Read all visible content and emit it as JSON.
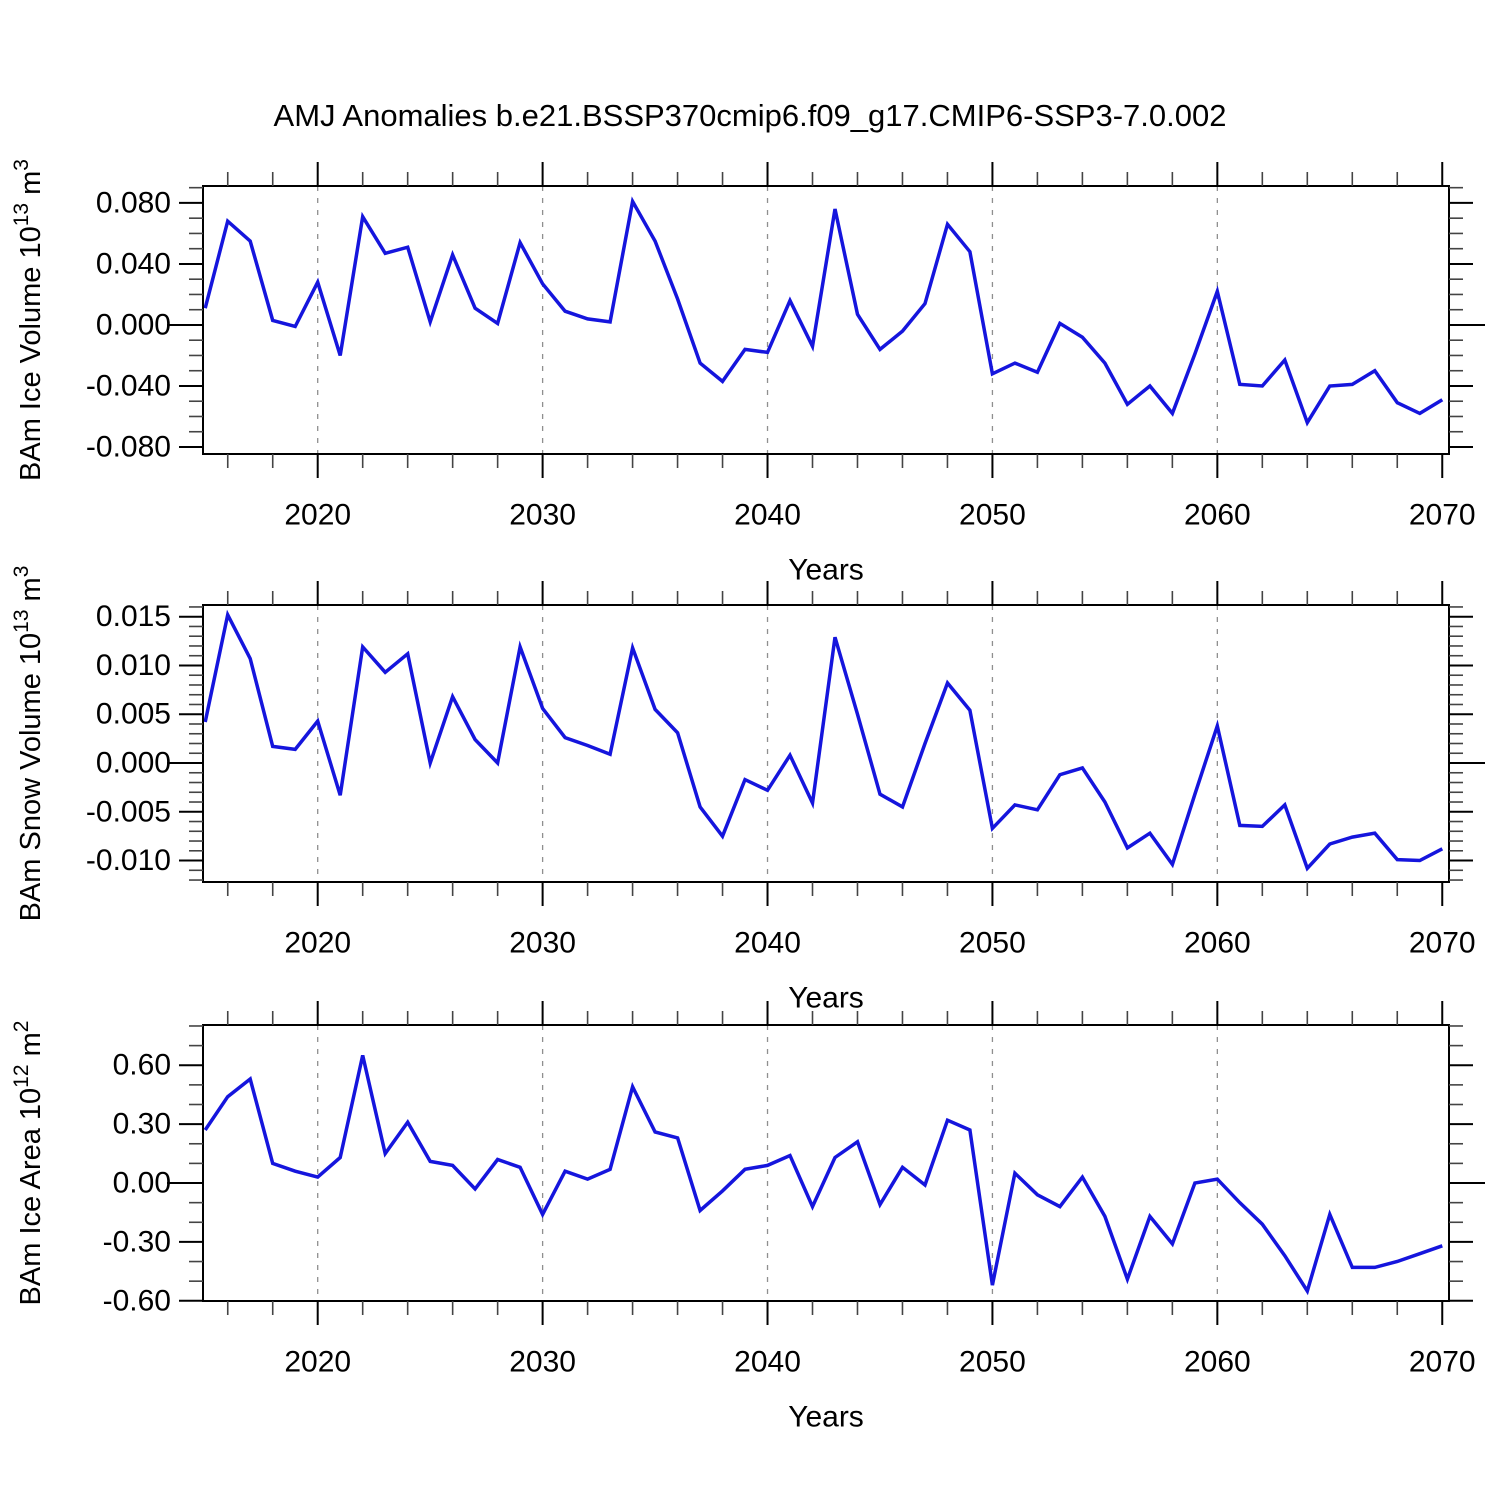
{
  "title": "AMJ Anomalies b.e21.BSSP370cmip6.f09_g17.CMIP6-SSP3-7.0.002",
  "figure": {
    "background": "#ffffff",
    "line_color": "#1515dd",
    "axis_color": "#000000",
    "grid_color": "#8f8f8f"
  },
  "chart_data": [
    {
      "type": "line",
      "title": "AMJ Anomalies b.e21.BSSP370cmip6.f09_g17.CMIP6-SSP3-7.0.002",
      "series_name": "BAm Ice Volume anomaly",
      "ylabel": "BAm Ice Volume 10^13 m^3",
      "ylabel_parts": [
        {
          "text": "BAm Ice Volume 10",
          "sup": false
        },
        {
          "text": "13",
          "sup": true
        },
        {
          "text": " m",
          "sup": false
        },
        {
          "text": "3",
          "sup": true
        }
      ],
      "xlabel": "Years",
      "xlim": [
        2014.9,
        2070.3
      ],
      "ylim": [
        -0.0846,
        0.0911
      ],
      "x_ticks": [
        2020,
        2030,
        2040,
        2050,
        2060,
        2070
      ],
      "x_tick_labels": [
        "2020",
        "2030",
        "2040",
        "2050",
        "2060",
        "2070"
      ],
      "x_minor_step": 2,
      "gridline_years": [
        2020,
        2030,
        2040,
        2050,
        2060
      ],
      "grid": true,
      "legend": "none",
      "y_ticks": [
        0.08,
        0.04,
        0.0,
        -0.04,
        -0.08
      ],
      "y_tick_labels": [
        "0.080",
        "0.040",
        "0.000",
        "-0.040",
        "-0.080"
      ],
      "y_minor_step": 0.01,
      "years": [
        2015,
        2016,
        2017,
        2018,
        2019,
        2020,
        2021,
        2022,
        2023,
        2024,
        2025,
        2026,
        2027,
        2028,
        2029,
        2030,
        2031,
        2032,
        2033,
        2034,
        2035,
        2036,
        2037,
        2038,
        2039,
        2040,
        2041,
        2042,
        2043,
        2044,
        2045,
        2046,
        2047,
        2048,
        2049,
        2050,
        2051,
        2052,
        2053,
        2054,
        2055,
        2056,
        2057,
        2058,
        2059,
        2060,
        2061,
        2062,
        2063,
        2064,
        2065,
        2066,
        2067,
        2068,
        2069,
        2070
      ],
      "values": [
        0.011,
        0.068,
        0.055,
        0.003,
        -0.001,
        0.028,
        -0.02,
        0.071,
        0.047,
        0.051,
        0.002,
        0.046,
        0.011,
        0.001,
        0.054,
        0.027,
        0.009,
        0.004,
        0.002,
        0.081,
        0.055,
        0.017,
        -0.025,
        -0.037,
        -0.016,
        -0.018,
        0.016,
        -0.014,
        0.076,
        0.007,
        -0.016,
        -0.004,
        0.014,
        0.066,
        0.048,
        -0.032,
        -0.025,
        -0.031,
        0.001,
        -0.008,
        -0.025,
        -0.052,
        -0.04,
        -0.058,
        -0.019,
        0.022,
        -0.039,
        -0.04,
        -0.023,
        -0.064,
        -0.04,
        -0.039,
        -0.03,
        -0.051,
        -0.058,
        -0.049
      ]
    },
    {
      "type": "line",
      "title": "",
      "series_name": "BAm Snow Volume anomaly",
      "ylabel": "BAm Snow Volume 10^13 m^3",
      "ylabel_parts": [
        {
          "text": "BAm Snow Volume 10",
          "sup": false
        },
        {
          "text": "13",
          "sup": true
        },
        {
          "text": " m",
          "sup": false
        },
        {
          "text": "3",
          "sup": true
        }
      ],
      "xlabel": "Years",
      "xlim": [
        2014.9,
        2070.3
      ],
      "ylim": [
        -0.0122,
        0.0162
      ],
      "x_ticks": [
        2020,
        2030,
        2040,
        2050,
        2060,
        2070
      ],
      "x_tick_labels": [
        "2020",
        "2030",
        "2040",
        "2050",
        "2060",
        "2070"
      ],
      "x_minor_step": 2,
      "gridline_years": [
        2020,
        2030,
        2040,
        2050,
        2060
      ],
      "grid": true,
      "legend": "none",
      "y_ticks": [
        0.015,
        0.01,
        0.005,
        0.0,
        -0.005,
        -0.01
      ],
      "y_tick_labels": [
        "0.015",
        "0.010",
        "0.005",
        "0.000",
        "-0.005",
        "-0.010"
      ],
      "y_minor_step": 0.001,
      "years": [
        2015,
        2016,
        2017,
        2018,
        2019,
        2020,
        2021,
        2022,
        2023,
        2024,
        2025,
        2026,
        2027,
        2028,
        2029,
        2030,
        2031,
        2032,
        2033,
        2034,
        2035,
        2036,
        2037,
        2038,
        2039,
        2040,
        2041,
        2042,
        2043,
        2044,
        2045,
        2046,
        2047,
        2048,
        2049,
        2050,
        2051,
        2052,
        2053,
        2054,
        2055,
        2056,
        2057,
        2058,
        2059,
        2060,
        2061,
        2062,
        2063,
        2064,
        2065,
        2066,
        2067,
        2068,
        2069,
        2070
      ],
      "values": [
        0.0042,
        0.0152,
        0.0107,
        0.0017,
        0.0014,
        0.0043,
        -0.0033,
        0.0119,
        0.0093,
        0.0112,
        0.0,
        0.0068,
        0.0024,
        0.0,
        0.0119,
        0.0056,
        0.0026,
        0.0018,
        0.0009,
        0.0118,
        0.0055,
        0.0031,
        -0.0045,
        -0.0075,
        -0.0017,
        -0.0028,
        0.0008,
        -0.0041,
        0.0129,
        0.005,
        -0.0032,
        -0.0045,
        0.002,
        0.0082,
        0.0054,
        -0.0067,
        -0.0043,
        -0.0048,
        -0.0012,
        -0.0005,
        -0.004,
        -0.0087,
        -0.0072,
        -0.0104,
        -0.0032,
        0.0038,
        -0.0064,
        -0.0065,
        -0.0043,
        -0.0108,
        -0.0083,
        -0.0076,
        -0.0072,
        -0.0099,
        -0.01,
        -0.0088
      ]
    },
    {
      "type": "line",
      "title": "",
      "series_name": "BAm Ice Area anomaly",
      "ylabel": "BAm Ice Area 10^12 m^2",
      "ylabel_parts": [
        {
          "text": "BAm Ice Area 10",
          "sup": false
        },
        {
          "text": "12",
          "sup": true
        },
        {
          "text": " m",
          "sup": false
        },
        {
          "text": "2",
          "sup": true
        }
      ],
      "xlabel": "Years",
      "xlim": [
        2014.9,
        2070.3
      ],
      "ylim": [
        -0.601,
        0.805
      ],
      "x_ticks": [
        2020,
        2030,
        2040,
        2050,
        2060,
        2070
      ],
      "x_tick_labels": [
        "2020",
        "2030",
        "2040",
        "2050",
        "2060",
        "2070"
      ],
      "x_minor_step": 2,
      "gridline_years": [
        2020,
        2030,
        2040,
        2050,
        2060
      ],
      "grid": true,
      "legend": "none",
      "y_ticks": [
        0.6,
        0.3,
        0.0,
        -0.3,
        -0.6
      ],
      "y_tick_labels": [
        "0.60",
        "0.30",
        "0.00",
        "-0.30",
        "-0.60"
      ],
      "y_minor_step": 0.1,
      "years": [
        2015,
        2016,
        2017,
        2018,
        2019,
        2020,
        2021,
        2022,
        2023,
        2024,
        2025,
        2026,
        2027,
        2028,
        2029,
        2030,
        2031,
        2032,
        2033,
        2034,
        2035,
        2036,
        2037,
        2038,
        2039,
        2040,
        2041,
        2042,
        2043,
        2044,
        2045,
        2046,
        2047,
        2048,
        2049,
        2050,
        2051,
        2052,
        2053,
        2054,
        2055,
        2056,
        2057,
        2058,
        2059,
        2060,
        2061,
        2062,
        2063,
        2064,
        2065,
        2066,
        2067,
        2068,
        2069,
        2070
      ],
      "values": [
        0.27,
        0.44,
        0.53,
        0.1,
        0.06,
        0.03,
        0.13,
        0.65,
        0.15,
        0.31,
        0.11,
        0.09,
        -0.03,
        0.12,
        0.08,
        -0.16,
        0.06,
        0.02,
        0.07,
        0.49,
        0.26,
        0.23,
        -0.14,
        -0.04,
        0.07,
        0.09,
        0.14,
        -0.12,
        0.13,
        0.21,
        -0.11,
        0.08,
        -0.01,
        0.32,
        0.27,
        -0.52,
        0.05,
        -0.06,
        -0.12,
        0.03,
        -0.17,
        -0.49,
        -0.17,
        -0.31,
        0.0,
        0.02,
        -0.1,
        -0.21,
        -0.37,
        -0.55,
        -0.16,
        -0.43,
        -0.43,
        -0.4,
        -0.36,
        -0.32
      ]
    }
  ]
}
